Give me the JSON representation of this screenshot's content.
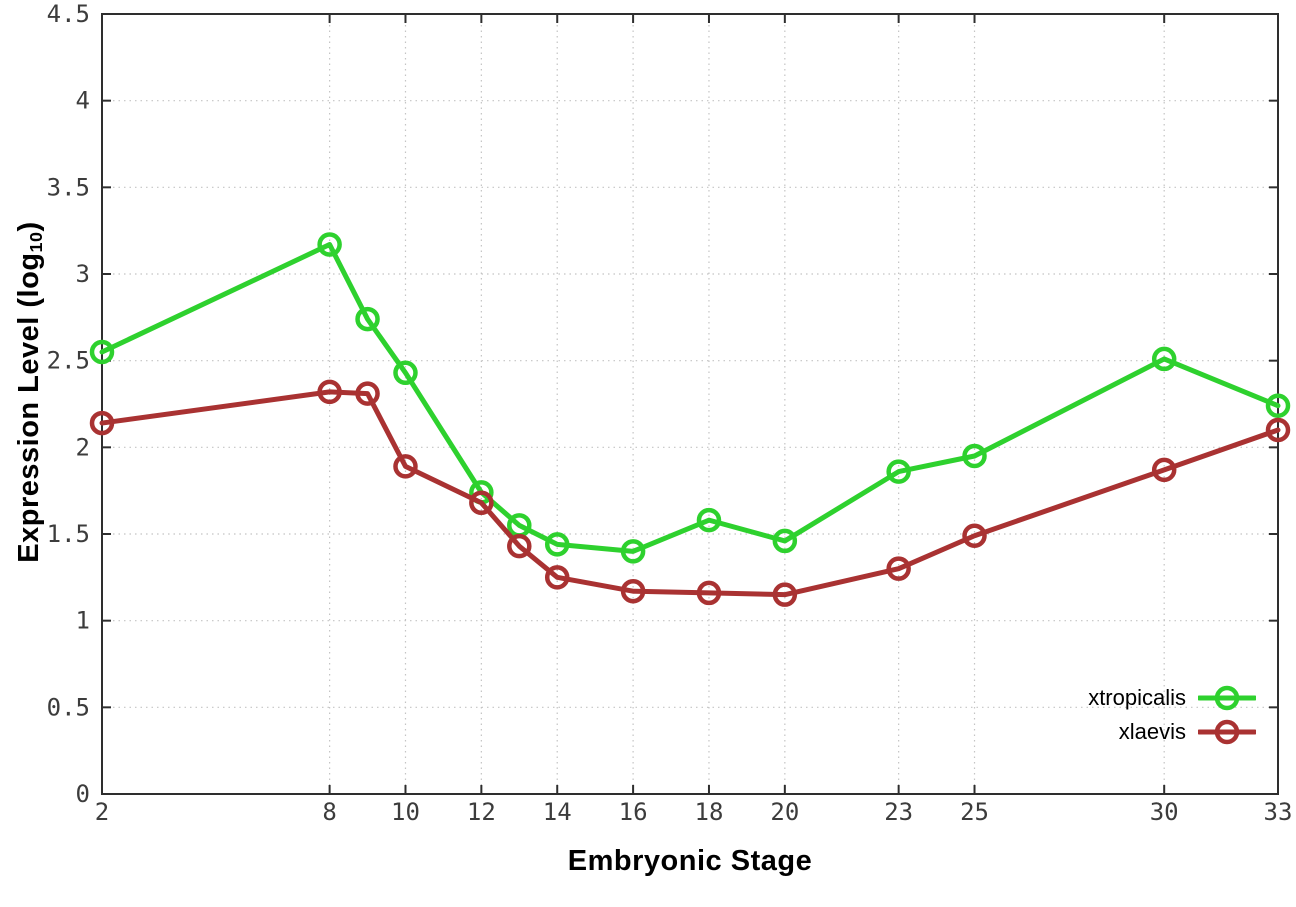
{
  "chart_data": {
    "type": "line",
    "title": "",
    "xlabel": "Embryonic Stage",
    "ylabel": {
      "main": "Expression Level (log",
      "sub": "10",
      "end": ")"
    },
    "x": [
      2,
      8,
      9,
      10,
      12,
      13,
      14,
      16,
      18,
      20,
      23,
      25,
      30,
      33
    ],
    "series": [
      {
        "name": "xtropicalis",
        "color": "#2ed12e",
        "values": [
          2.55,
          3.17,
          2.74,
          2.43,
          1.74,
          1.55,
          1.44,
          1.4,
          1.58,
          1.46,
          1.86,
          1.95,
          2.51,
          2.24
        ]
      },
      {
        "name": "xlaevis",
        "color": "#a93232",
        "values": [
          2.14,
          2.32,
          2.31,
          1.89,
          1.68,
          1.43,
          1.25,
          1.17,
          1.16,
          1.15,
          1.3,
          1.49,
          1.87,
          2.1
        ]
      }
    ],
    "xlim": [
      2,
      33
    ],
    "ylim": [
      0,
      4.5
    ],
    "xticks": {
      "values": [
        2,
        8,
        10,
        12,
        14,
        16,
        18,
        20,
        23,
        25,
        30,
        33
      ],
      "labels": [
        "2",
        "8",
        "10",
        "12",
        "14",
        "16",
        "18",
        "20",
        "23",
        "25",
        "30",
        "33"
      ]
    },
    "yticks": {
      "values": [
        0,
        0.5,
        1,
        1.5,
        2,
        2.5,
        3,
        3.5,
        4,
        4.5
      ],
      "labels": [
        "0",
        "0.5",
        "1",
        "1.5",
        "2",
        "2.5",
        "3",
        "3.5",
        "4",
        "4.5"
      ]
    },
    "grid": true,
    "legend_position": "inside-bottom-right",
    "marker": "open-circle"
  },
  "style": {
    "background": "#ffffff",
    "border_color": "#2e2e2e",
    "grid_color": "#c4c4c4",
    "tick_label_color": "#3c3c3c",
    "title_color": "#000000"
  }
}
